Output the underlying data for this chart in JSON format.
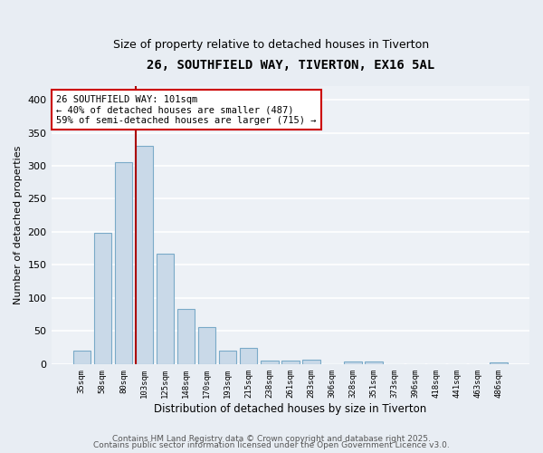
{
  "title": "26, SOUTHFIELD WAY, TIVERTON, EX16 5AL",
  "subtitle": "Size of property relative to detached houses in Tiverton",
  "xlabel": "Distribution of detached houses by size in Tiverton",
  "ylabel": "Number of detached properties",
  "categories": [
    "35sqm",
    "58sqm",
    "80sqm",
    "103sqm",
    "125sqm",
    "148sqm",
    "170sqm",
    "193sqm",
    "215sqm",
    "238sqm",
    "261sqm",
    "283sqm",
    "306sqm",
    "328sqm",
    "351sqm",
    "373sqm",
    "396sqm",
    "418sqm",
    "441sqm",
    "463sqm",
    "486sqm"
  ],
  "values": [
    20,
    198,
    305,
    330,
    167,
    83,
    56,
    20,
    25,
    5,
    5,
    6,
    0,
    4,
    4,
    0,
    0,
    0,
    0,
    0,
    3
  ],
  "bar_color": "#c9d9e8",
  "bar_edge_color": "#7aaac8",
  "vline_color": "#aa0000",
  "annotation_text": "26 SOUTHFIELD WAY: 101sqm\n← 40% of detached houses are smaller (487)\n59% of semi-detached houses are larger (715) →",
  "annotation_box_color": "#ffffff",
  "annotation_box_edge_color": "#cc0000",
  "ylim": [
    0,
    420
  ],
  "yticks": [
    0,
    50,
    100,
    150,
    200,
    250,
    300,
    350,
    400
  ],
  "background_color": "#e8edf3",
  "plot_background_color": "#edf1f6",
  "grid_color": "#ffffff",
  "footer_line1": "Contains HM Land Registry data © Crown copyright and database right 2025.",
  "footer_line2": "Contains public sector information licensed under the Open Government Licence v3.0.",
  "title_fontsize": 10,
  "subtitle_fontsize": 9,
  "annotation_fontsize": 7.5,
  "footer_fontsize": 6.5,
  "ylabel_fontsize": 8,
  "xlabel_fontsize": 8.5
}
